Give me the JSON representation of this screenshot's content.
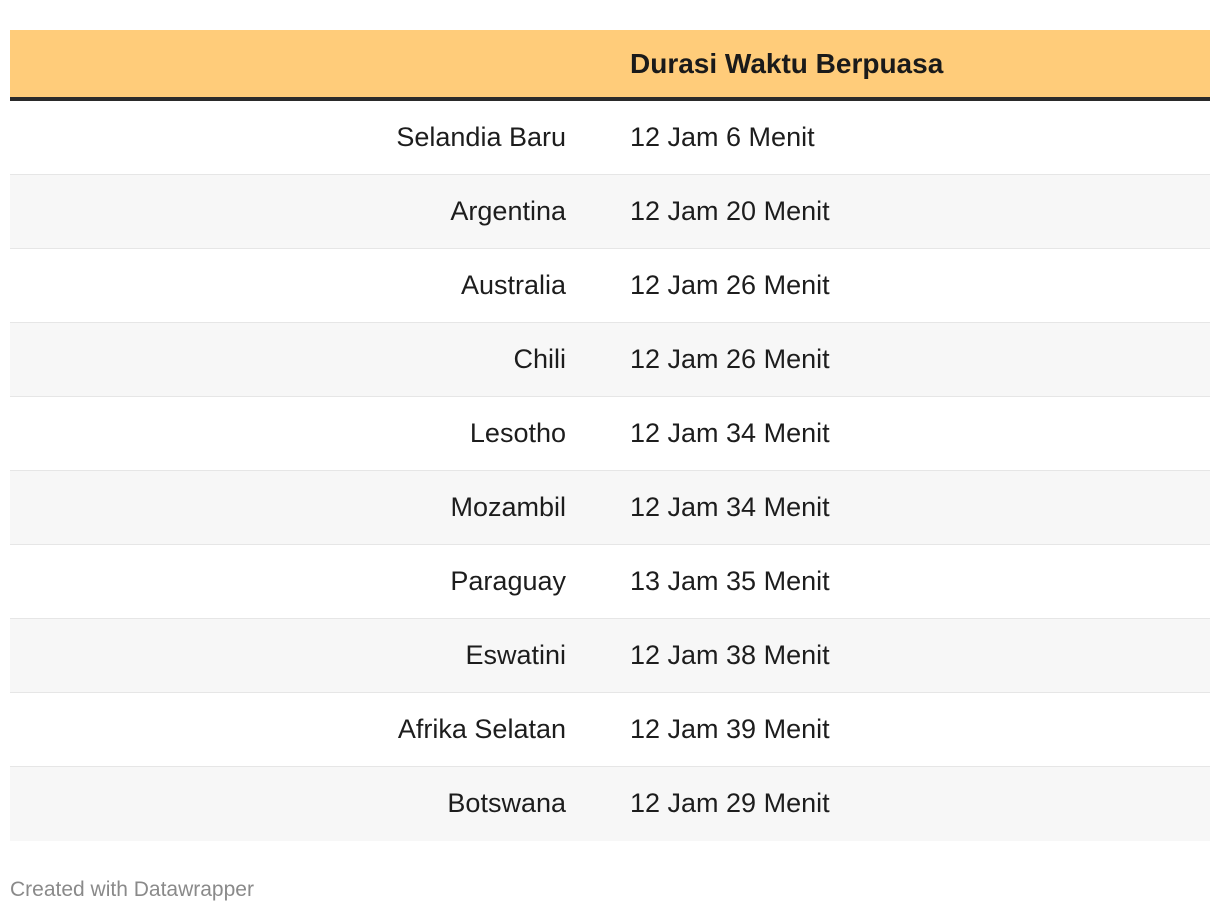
{
  "chart_data": {
    "type": "table",
    "columns": [
      "",
      "Durasi Waktu Berpuasa"
    ],
    "rows": [
      {
        "country": "Selandia Baru",
        "duration": "12 Jam 6 Menit"
      },
      {
        "country": "Argentina",
        "duration": "12 Jam 20 Menit"
      },
      {
        "country": "Australia",
        "duration": "12 Jam 26 Menit"
      },
      {
        "country": "Chili",
        "duration": "12 Jam 26 Menit"
      },
      {
        "country": "Lesotho",
        "duration": "12 Jam 34 Menit"
      },
      {
        "country": "Mozambil",
        "duration": "12 Jam 34 Menit"
      },
      {
        "country": "Paraguay",
        "duration": "13 Jam 35 Menit"
      },
      {
        "country": "Eswatini",
        "duration": "12 Jam 38 Menit"
      },
      {
        "country": "Afrika Selatan",
        "duration": "12 Jam 39 Menit"
      },
      {
        "country": "Botswana",
        "duration": "12 Jam 29 Menit"
      }
    ]
  },
  "footer": {
    "credit": "Created with Datawrapper"
  },
  "colors": {
    "header_bg": "#ffcc7a",
    "header_rule": "#2a2a2a",
    "alt_row_bg": "#f7f7f7",
    "footer_text": "#8a8a8a"
  }
}
